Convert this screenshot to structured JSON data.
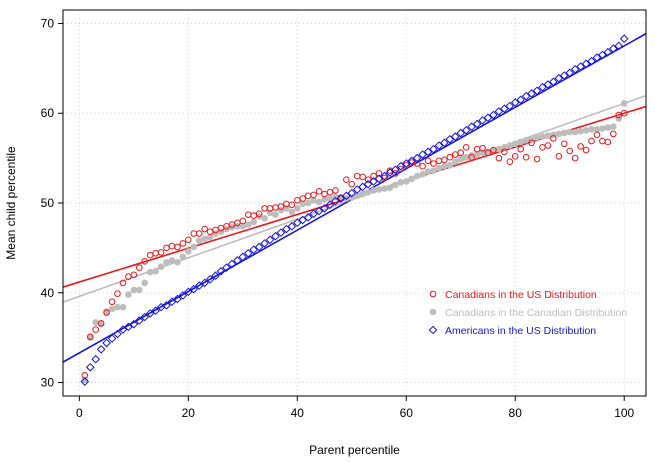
{
  "chart_data": {
    "type": "scatter",
    "title": "",
    "xlabel": "Parent percentile",
    "ylabel": "Mean child percentile",
    "xlim": [
      -3,
      104
    ],
    "ylim": [
      28.5,
      71.5
    ],
    "xticks": [
      0,
      20,
      40,
      60,
      80,
      100
    ],
    "yticks": [
      30,
      40,
      50,
      60,
      70
    ],
    "grid": true,
    "legend_position": "lower-right",
    "series": [
      {
        "name": "Canadians in the US Distribution",
        "marker": "circle-open",
        "color": "#e8191c",
        "fit": {
          "intercept": 41.2,
          "slope": 0.188
        },
        "x": [
          1,
          2,
          3,
          4,
          5,
          6,
          7,
          8,
          9,
          10,
          11,
          12,
          13,
          14,
          15,
          16,
          17,
          18,
          19,
          20,
          21,
          22,
          23,
          24,
          25,
          26,
          27,
          28,
          29,
          30,
          31,
          32,
          33,
          34,
          35,
          36,
          37,
          38,
          39,
          40,
          41,
          42,
          43,
          44,
          45,
          46,
          47,
          48,
          49,
          50,
          51,
          52,
          53,
          54,
          55,
          56,
          57,
          58,
          59,
          60,
          61,
          62,
          63,
          64,
          65,
          66,
          67,
          68,
          69,
          70,
          71,
          72,
          73,
          74,
          75,
          76,
          77,
          78,
          79,
          80,
          81,
          82,
          83,
          84,
          85,
          86,
          87,
          88,
          89,
          90,
          91,
          92,
          93,
          94,
          95,
          96,
          97,
          98,
          99,
          100
        ],
        "y": [
          30.8,
          35.1,
          35.9,
          36.6,
          37.8,
          39.0,
          39.9,
          41.1,
          41.8,
          42.0,
          42.8,
          43.5,
          44.2,
          44.4,
          44.5,
          45.0,
          45.2,
          45.1,
          45.5,
          45.9,
          46.6,
          46.6,
          47.1,
          46.8,
          47.0,
          47.2,
          47.4,
          47.6,
          47.8,
          48.0,
          48.7,
          48.6,
          48.8,
          49.4,
          49.4,
          49.5,
          49.6,
          49.9,
          49.8,
          50.3,
          50.5,
          50.8,
          50.9,
          51.3,
          51.0,
          51.2,
          51.4,
          50.6,
          52.6,
          52.1,
          53.0,
          52.9,
          52.6,
          53.0,
          53.3,
          52.8,
          53.6,
          53.3,
          53.8,
          54.2,
          54.5,
          54.4,
          54.1,
          54.7,
          54.4,
          54.7,
          54.8,
          55.1,
          55.4,
          55.6,
          56.2,
          55.1,
          56.0,
          56.1,
          55.6,
          55.9,
          55.0,
          55.7,
          54.6,
          55.2,
          56.0,
          55.1,
          56.7,
          54.9,
          56.2,
          56.4,
          57.2,
          55.2,
          56.6,
          55.8,
          55.0,
          56.3,
          55.9,
          56.9,
          57.6,
          56.9,
          56.8,
          57.7,
          59.8,
          60.0
        ]
      },
      {
        "name": "Canadians in the Canadian Distribution",
        "marker": "circle-filled",
        "color": "#bdbdbd",
        "fit": {
          "intercept": 39.6,
          "slope": 0.215
        },
        "x": [
          1,
          2,
          3,
          4,
          5,
          6,
          7,
          8,
          9,
          10,
          11,
          12,
          13,
          14,
          15,
          16,
          17,
          18,
          19,
          20,
          21,
          22,
          23,
          24,
          25,
          26,
          27,
          28,
          29,
          30,
          31,
          32,
          33,
          34,
          35,
          36,
          37,
          38,
          39,
          40,
          41,
          42,
          43,
          44,
          45,
          46,
          47,
          48,
          49,
          50,
          51,
          52,
          53,
          54,
          55,
          56,
          57,
          58,
          59,
          60,
          61,
          62,
          63,
          64,
          65,
          66,
          67,
          68,
          69,
          70,
          71,
          72,
          73,
          74,
          75,
          76,
          77,
          78,
          79,
          80,
          81,
          82,
          83,
          84,
          85,
          86,
          87,
          88,
          89,
          90,
          91,
          92,
          93,
          94,
          95,
          96,
          97,
          98,
          99,
          100
        ],
        "y": [
          30.3,
          35.0,
          36.7,
          36.5,
          37.9,
          38.2,
          38.4,
          38.4,
          39.8,
          40.3,
          40.3,
          41.1,
          42.3,
          42.4,
          42.9,
          43.4,
          43.6,
          43.4,
          44.0,
          44.6,
          45.1,
          45.8,
          46.0,
          46.2,
          46.6,
          46.8,
          47.1,
          47.3,
          47.4,
          47.4,
          47.6,
          47.9,
          48.5,
          48.3,
          48.9,
          48.7,
          49.2,
          49.4,
          49.0,
          49.4,
          49.9,
          50.0,
          50.3,
          50.1,
          50.4,
          50.5,
          50.7,
          50.6,
          50.5,
          50.6,
          50.8,
          51.0,
          51.2,
          51.4,
          51.5,
          51.6,
          51.7,
          52.0,
          52.3,
          52.4,
          52.7,
          53.0,
          53.2,
          53.5,
          53.6,
          53.9,
          54.1,
          54.2,
          54.6,
          54.9,
          55.1,
          55.3,
          55.4,
          55.6,
          55.7,
          55.9,
          56.0,
          56.2,
          56.4,
          56.6,
          56.8,
          57.0,
          57.1,
          57.3,
          57.4,
          57.5,
          57.6,
          57.7,
          57.8,
          57.9,
          57.9,
          58.0,
          58.1,
          58.2,
          58.2,
          58.3,
          58.4,
          58.5,
          59.4,
          61.1
        ]
      },
      {
        "name": "Americans in the US Distribution",
        "marker": "diamond-open",
        "color": "#1515d4",
        "fit": {
          "intercept": 33.3,
          "slope": 0.342
        },
        "x": [
          1,
          2,
          3,
          4,
          5,
          6,
          7,
          8,
          9,
          10,
          11,
          12,
          13,
          14,
          15,
          16,
          17,
          18,
          19,
          20,
          21,
          22,
          23,
          24,
          25,
          26,
          27,
          28,
          29,
          30,
          31,
          32,
          33,
          34,
          35,
          36,
          37,
          38,
          39,
          40,
          41,
          42,
          43,
          44,
          45,
          46,
          47,
          48,
          49,
          50,
          51,
          52,
          53,
          54,
          55,
          56,
          57,
          58,
          59,
          60,
          61,
          62,
          63,
          64,
          65,
          66,
          67,
          68,
          69,
          70,
          71,
          72,
          73,
          74,
          75,
          76,
          77,
          78,
          79,
          80,
          81,
          82,
          83,
          84,
          85,
          86,
          87,
          88,
          89,
          90,
          91,
          92,
          93,
          94,
          95,
          96,
          97,
          98,
          99,
          100
        ],
        "y": [
          30.1,
          31.7,
          32.6,
          33.7,
          34.4,
          34.9,
          35.4,
          35.9,
          36.2,
          36.5,
          36.9,
          37.3,
          37.7,
          38.0,
          38.4,
          38.6,
          39.0,
          39.3,
          39.7,
          40.1,
          40.4,
          40.8,
          41.1,
          41.5,
          41.9,
          42.4,
          42.8,
          43.2,
          43.6,
          44.0,
          44.4,
          44.8,
          45.1,
          45.5,
          45.9,
          46.3,
          46.7,
          47.1,
          47.4,
          47.8,
          48.1,
          48.4,
          48.8,
          49.1,
          49.4,
          49.8,
          50.2,
          50.5,
          50.8,
          51.1,
          51.5,
          51.8,
          52.1,
          52.4,
          52.7,
          53.0,
          53.4,
          53.7,
          54.1,
          54.4,
          54.7,
          55.0,
          55.4,
          55.7,
          56.0,
          56.4,
          56.7,
          57.1,
          57.4,
          57.8,
          58.1,
          58.5,
          58.8,
          59.2,
          59.5,
          59.8,
          60.2,
          60.5,
          60.8,
          61.2,
          61.5,
          61.9,
          62.2,
          62.5,
          62.9,
          63.2,
          63.5,
          63.9,
          64.2,
          64.5,
          64.9,
          65.2,
          65.5,
          65.8,
          66.2,
          66.5,
          66.8,
          67.2,
          67.5,
          68.3
        ]
      }
    ]
  }
}
